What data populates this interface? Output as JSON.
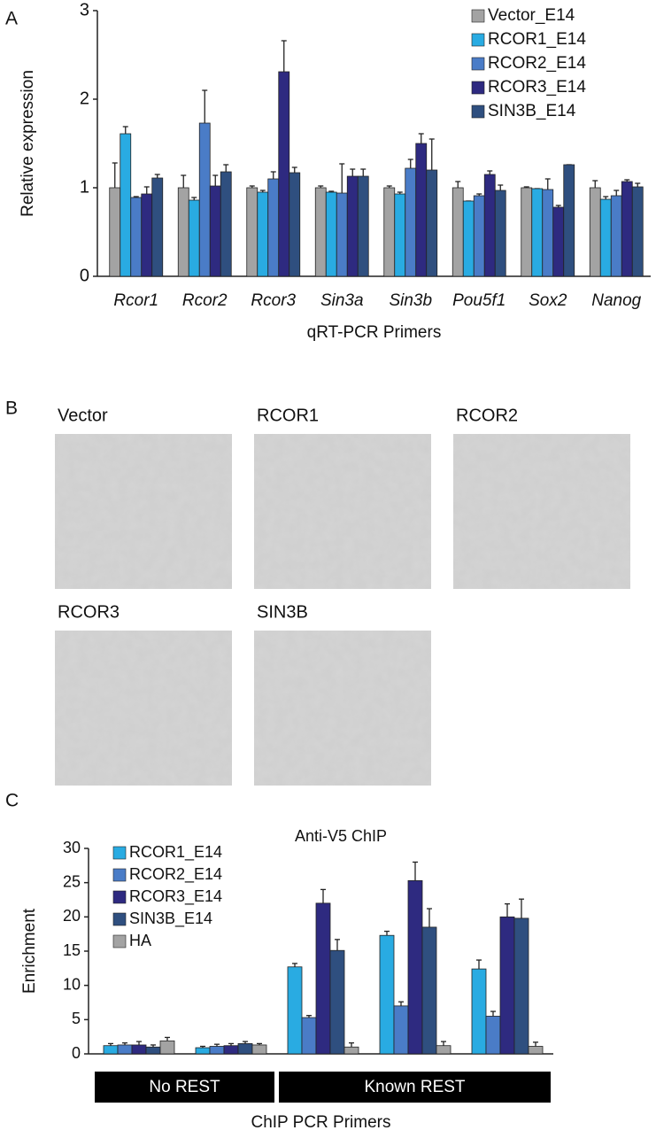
{
  "panel_labels": [
    "A",
    "B",
    "C"
  ],
  "images": [
    {
      "label": "Vector"
    },
    {
      "label": "RCOR1"
    },
    {
      "label": "RCOR2"
    },
    {
      "label": "RCOR3"
    },
    {
      "label": "SIN3B"
    }
  ],
  "chart_data": [
    {
      "type": "bar",
      "ylabel": "Relative expression",
      "xlabel": "qRT-PCR Primers",
      "categories": [
        "Rcor1",
        "Rcor2",
        "Rcor3",
        "Sin3a",
        "Sin3b",
        "Pou5f1",
        "Sox2",
        "Nanog"
      ],
      "category_font_style": "italic",
      "ylim": [
        0,
        3
      ],
      "yticks": [
        0,
        1,
        2,
        3
      ],
      "legend": "upper right",
      "series": [
        {
          "name": "Vector_E14",
          "color": "#a3a3a3",
          "values": [
            1.0,
            1.0,
            1.0,
            1.0,
            1.0,
            1.0,
            1.0,
            1.0
          ],
          "errors": [
            0.28,
            0.14,
            0.02,
            0.02,
            0.02,
            0.07,
            0.01,
            0.08
          ]
        },
        {
          "name": "RCOR1_E14",
          "color": "#29abe2",
          "values": [
            1.61,
            0.86,
            0.95,
            0.95,
            0.93,
            0.85,
            0.99,
            0.87
          ],
          "errors": [
            0.08,
            0.03,
            0.02,
            0.01,
            0.02,
            0.0,
            0.0,
            0.03
          ]
        },
        {
          "name": "RCOR2_E14",
          "color": "#4a7cc7",
          "values": [
            0.89,
            1.73,
            1.1,
            0.94,
            1.22,
            0.91,
            0.98,
            0.91
          ],
          "errors": [
            0.01,
            0.37,
            0.08,
            0.33,
            0.1,
            0.02,
            0.12,
            0.06
          ]
        },
        {
          "name": "RCOR3_E14",
          "color": "#2e2a80",
          "values": [
            0.93,
            1.02,
            2.31,
            1.13,
            1.5,
            1.15,
            0.78,
            1.07
          ],
          "errors": [
            0.08,
            0.12,
            0.35,
            0.08,
            0.11,
            0.04,
            0.02,
            0.02
          ]
        },
        {
          "name": "SIN3B_E14",
          "color": "#2f4f7f",
          "values": [
            1.11,
            1.18,
            1.17,
            1.13,
            1.2,
            0.97,
            1.26,
            1.01
          ],
          "errors": [
            0.04,
            0.08,
            0.06,
            0.08,
            0.35,
            0.06,
            0.0,
            0.04
          ]
        }
      ]
    },
    {
      "type": "bar",
      "title": "Anti-V5 ChIP",
      "ylabel": "Enrichment",
      "xlabel": "ChIP PCR Primers",
      "categories": [
        null,
        null,
        null,
        null,
        null
      ],
      "groups": [
        {
          "label": "No REST",
          "n": 2
        },
        {
          "label": "Known REST",
          "n": 3
        }
      ],
      "ylim": [
        0,
        30
      ],
      "yticks": [
        0,
        5,
        10,
        15,
        20,
        25,
        30
      ],
      "legend": "upper left",
      "series": [
        {
          "name": "RCOR1_E14",
          "color": "#29abe2",
          "values": [
            1.2,
            0.9,
            12.7,
            17.3,
            12.4
          ],
          "errors": [
            0.3,
            0.2,
            0.5,
            0.6,
            1.3
          ]
        },
        {
          "name": "RCOR2_E14",
          "color": "#4a7cc7",
          "values": [
            1.3,
            1.1,
            5.3,
            7.0,
            5.5
          ],
          "errors": [
            0.3,
            0.3,
            0.3,
            0.6,
            0.7
          ]
        },
        {
          "name": "RCOR3_E14",
          "color": "#2e2a80",
          "values": [
            1.3,
            1.2,
            22.0,
            25.3,
            20.0
          ],
          "errors": [
            0.5,
            0.3,
            2.0,
            2.7,
            1.9
          ]
        },
        {
          "name": "SIN3B_E14",
          "color": "#2f4f7f",
          "values": [
            1.0,
            1.5,
            15.1,
            18.5,
            19.8
          ],
          "errors": [
            0.3,
            0.3,
            1.6,
            2.7,
            2.8
          ]
        },
        {
          "name": "HA",
          "color": "#a3a3a3",
          "values": [
            1.9,
            1.3,
            1.0,
            1.2,
            1.1
          ],
          "errors": [
            0.5,
            0.2,
            0.6,
            0.6,
            0.6
          ]
        }
      ]
    }
  ]
}
